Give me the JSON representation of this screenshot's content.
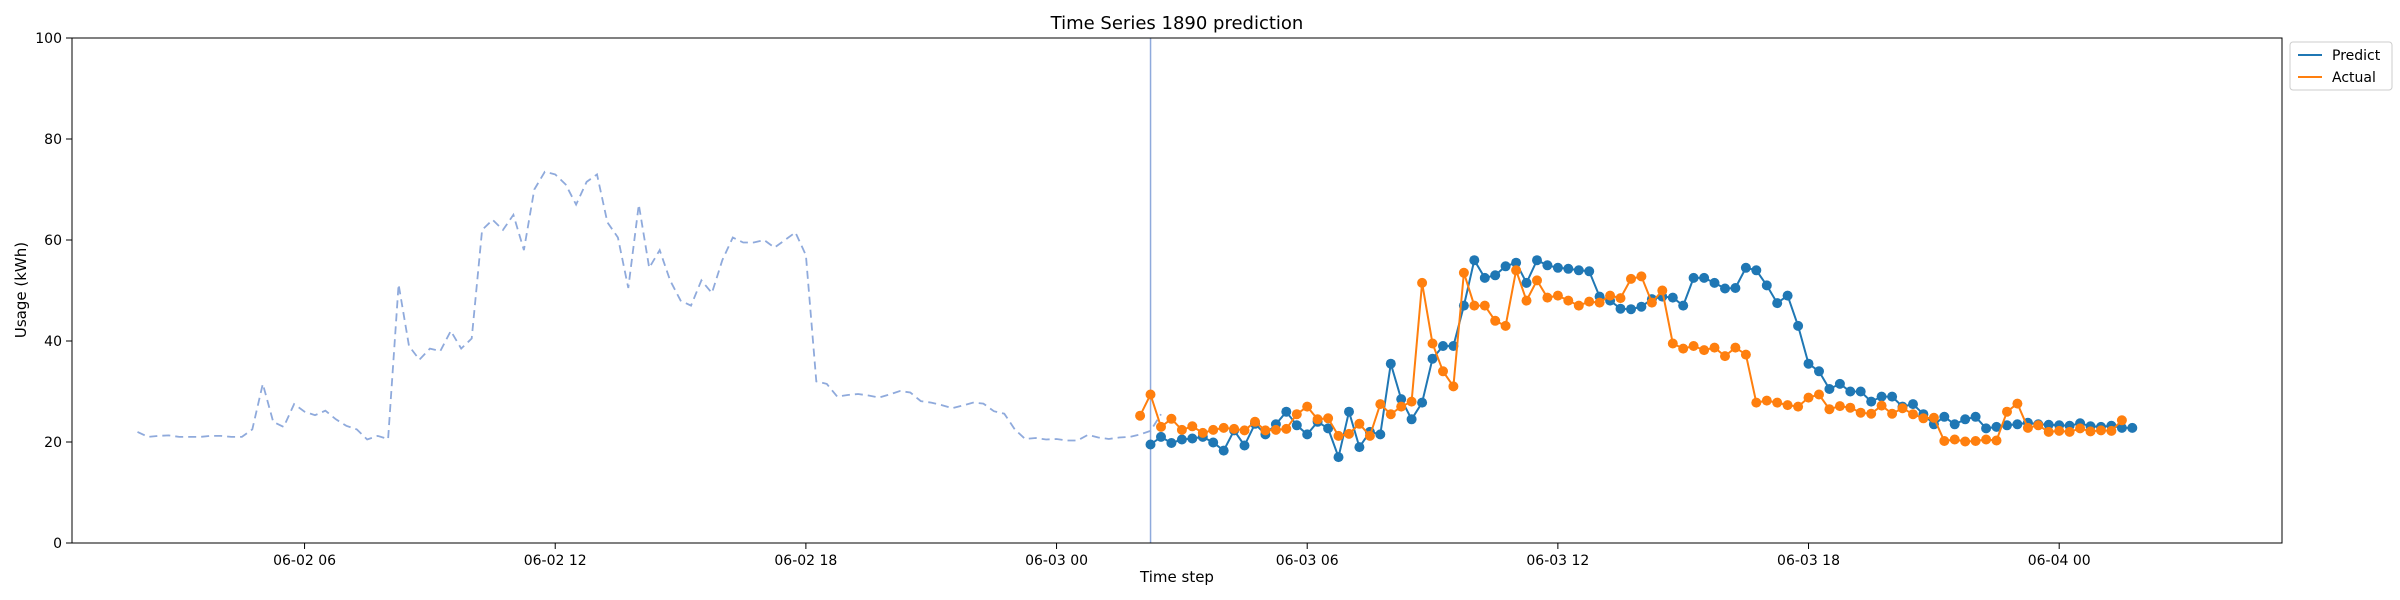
{
  "chart_data": {
    "type": "line",
    "title": "Time Series 1890 prediction",
    "xlabel": "Time step",
    "ylabel": "Usage (kWh)",
    "ylim": [
      0,
      100
    ],
    "yticks": [
      0,
      20,
      40,
      60,
      80,
      100
    ],
    "xlim": [
      "2025-06-02 00:26",
      "2025-06-04 05:20"
    ],
    "xticks": [
      {
        "label": "06-02 06",
        "x": "2025-06-02 06:00"
      },
      {
        "label": "06-02 12",
        "x": "2025-06-02 12:00"
      },
      {
        "label": "06-02 18",
        "x": "2025-06-02 18:00"
      },
      {
        "label": "06-03 00",
        "x": "2025-06-03 00:00"
      },
      {
        "label": "06-03 06",
        "x": "2025-06-03 06:00"
      },
      {
        "label": "06-03 12",
        "x": "2025-06-03 12:00"
      },
      {
        "label": "06-03 18",
        "x": "2025-06-03 18:00"
      },
      {
        "label": "06-04 00",
        "x": "2025-06-04 00:00"
      }
    ],
    "grid": false,
    "legend_position": "upper-right outside",
    "forecast_start": "2025-06-03 02:15",
    "series": [
      {
        "role": "history",
        "style": "dashed",
        "color": "#8faadc",
        "start": "2025-06-02 02:00",
        "step_minutes": 15,
        "values": [
          22,
          21,
          21.2,
          21.3,
          21,
          21,
          21,
          21.2,
          21.2,
          21,
          21,
          22.5,
          31.5,
          24,
          23,
          27.5,
          26,
          25.3,
          26.2,
          24.5,
          23.2,
          22.5,
          20.5,
          21.2,
          20.6,
          51.2,
          39,
          36.3,
          38.5,
          38,
          42,
          38.5,
          40.5,
          62,
          64,
          62,
          65,
          58,
          70,
          73.5,
          73,
          71,
          67,
          71.5,
          73,
          63.5,
          60.5,
          50.5,
          67,
          54.5,
          58,
          52,
          48,
          47,
          52,
          49.5,
          56,
          60.5,
          59.5,
          59.5,
          60,
          58.5,
          60,
          61.5,
          57,
          32,
          31.5,
          29,
          29.3,
          29.5,
          29.2,
          28.8,
          29.4,
          30.1,
          29.8,
          28.1,
          27.8,
          27.3,
          26.7,
          27.2,
          27.8,
          27.6,
          26.1,
          25.6,
          22.5,
          20.6,
          20.8,
          20.5,
          20.6,
          20.3,
          20.3,
          21.4,
          20.9,
          20.6,
          20.9,
          21,
          21.5,
          22.2,
          25.5
        ]
      },
      {
        "name": "Predict",
        "color": "#1f77b4",
        "start": "2025-06-03 02:15",
        "step_minutes": 15,
        "values": [
          19.5,
          21,
          19.8,
          20.5,
          20.7,
          21,
          19.9,
          18.3,
          22.3,
          19.3,
          23.6,
          21.5,
          23.5,
          26,
          23.3,
          21.5,
          24,
          22.7,
          17,
          26,
          19,
          22,
          21.5,
          35.5,
          28.5,
          24.5,
          27.8,
          36.5,
          39,
          39,
          47,
          56,
          52.5,
          53,
          54.8,
          55.5,
          51.5,
          56,
          55,
          54.5,
          54.3,
          54,
          53.8,
          48.8,
          48,
          46.4,
          46.3,
          46.8,
          48.3,
          48.8,
          48.6,
          47,
          52.5,
          52.5,
          51.5,
          50.4,
          50.5,
          54.5,
          54,
          51,
          47.5,
          49,
          43,
          35.5,
          34,
          30.5,
          31.5,
          30,
          30,
          28,
          29,
          29,
          27,
          27.5,
          25.5,
          23.5,
          25,
          23.5,
          24.5,
          25,
          22.7,
          23,
          23.3,
          23.5,
          23.8,
          23.5,
          23.4,
          23.3,
          23.2,
          23.7,
          23.1,
          23,
          23.2,
          22.8,
          22.8
        ]
      },
      {
        "name": "Actual",
        "color": "#ff7f0e",
        "start": "2025-06-03 02:00",
        "step_minutes": 15,
        "values": [
          25.2,
          29.4,
          23,
          24.6,
          22.4,
          23.1,
          21.8,
          22.4,
          22.8,
          22.6,
          22.3,
          24,
          22.3,
          22.4,
          22.6,
          25.5,
          27,
          24.5,
          24.7,
          21.2,
          21.6,
          23.6,
          21.2,
          27.5,
          25.5,
          27,
          28,
          51.5,
          39.5,
          34,
          31,
          53.5,
          47,
          47,
          44,
          43,
          54,
          48,
          52,
          48.6,
          49,
          48,
          47,
          47.8,
          47.6,
          49,
          48.5,
          52.3,
          52.8,
          47.6,
          50,
          39.5,
          38.5,
          39,
          38.2,
          38.7,
          37,
          38.7,
          37.3,
          27.8,
          28.2,
          27.8,
          27.3,
          27,
          28.8,
          29.4,
          26.5,
          27.1,
          26.8,
          25.8,
          25.6,
          27.2,
          25.6,
          26.7,
          25.5,
          24.7,
          24.8,
          20.2,
          20.5,
          20.1,
          20.2,
          20.5,
          20.3,
          26,
          27.6,
          22.8,
          23.3,
          22,
          22.2,
          22,
          22.7,
          22.1,
          22.3,
          22.2,
          24.3
        ]
      }
    ]
  }
}
